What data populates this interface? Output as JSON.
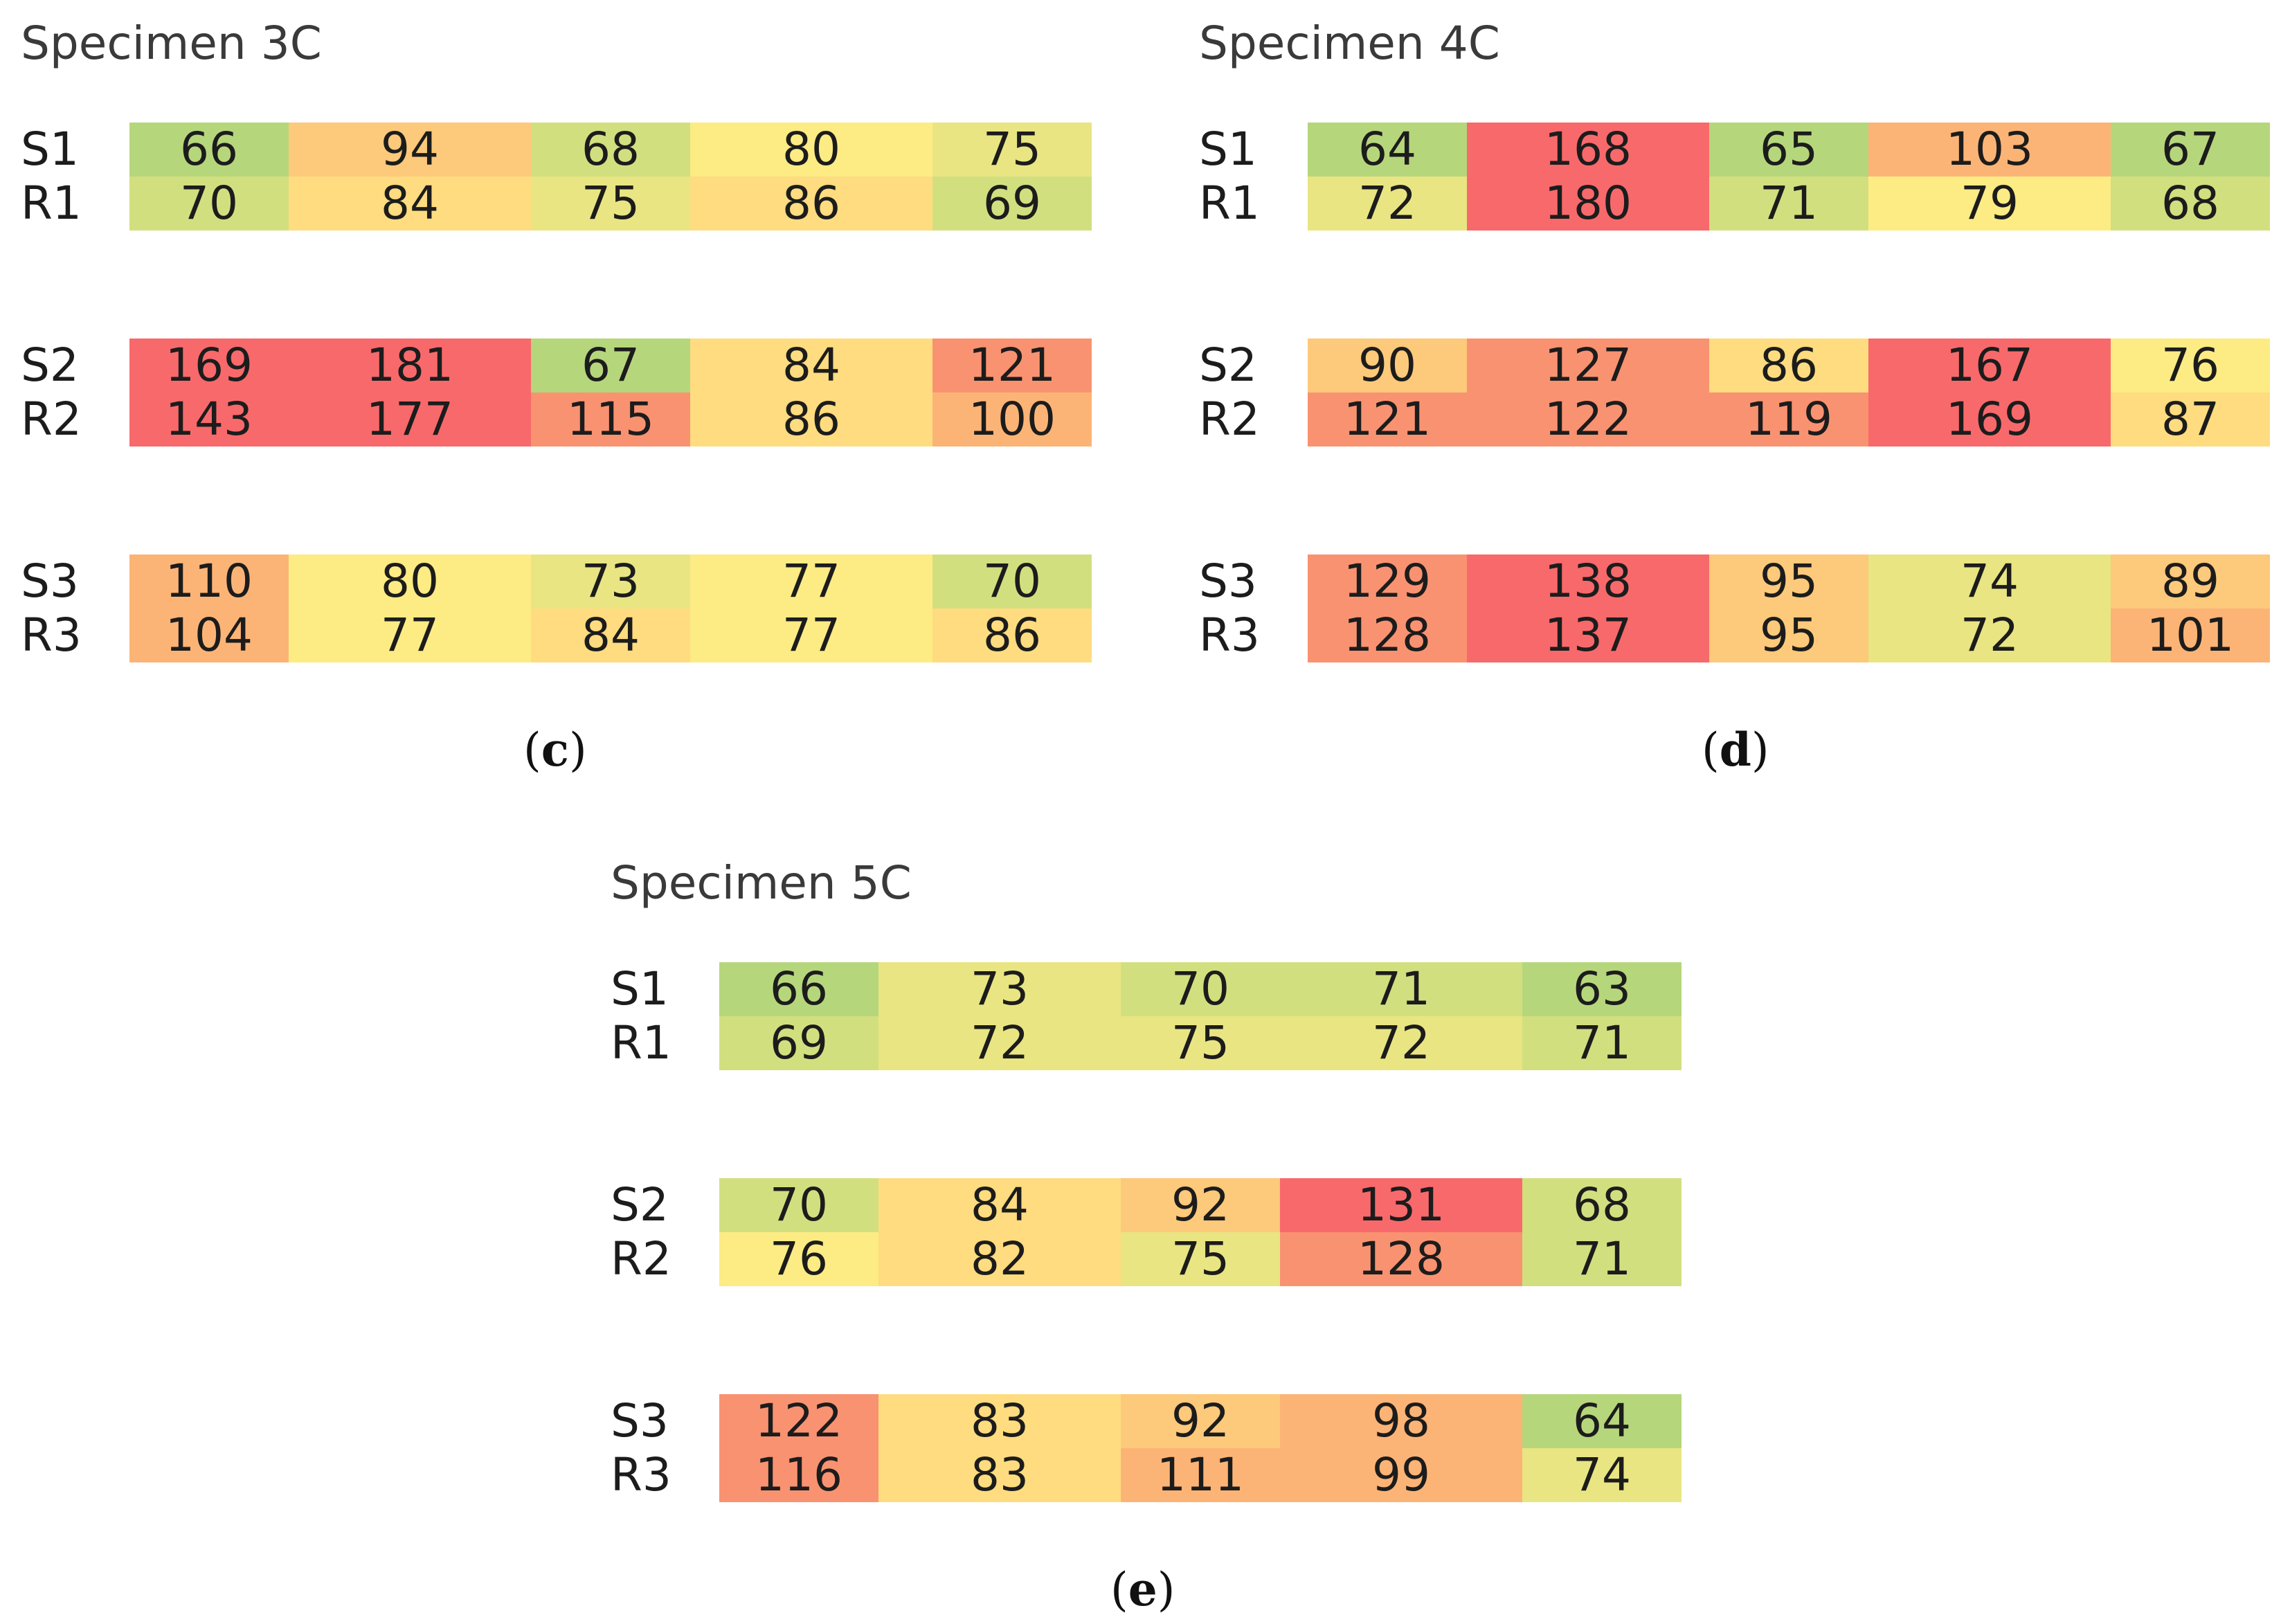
{
  "chart_data": [
    {
      "type": "heatmap",
      "title": "Specimen 3C",
      "caption_letter": "c",
      "row_labels": [
        "S1",
        "R1",
        "S2",
        "R2",
        "S3",
        "R3"
      ],
      "values": [
        [
          66,
          94,
          68,
          80,
          75
        ],
        [
          70,
          84,
          75,
          86,
          69
        ],
        [
          169,
          181,
          67,
          84,
          121
        ],
        [
          143,
          177,
          115,
          86,
          100
        ],
        [
          110,
          80,
          73,
          77,
          70
        ],
        [
          104,
          77,
          84,
          77,
          86
        ]
      ]
    },
    {
      "type": "heatmap",
      "title": "Specimen 4C",
      "caption_letter": "d",
      "row_labels": [
        "S1",
        "R1",
        "S2",
        "R2",
        "S3",
        "R3"
      ],
      "values": [
        [
          64,
          168,
          65,
          103,
          67
        ],
        [
          72,
          180,
          71,
          79,
          68
        ],
        [
          90,
          127,
          86,
          167,
          76
        ],
        [
          121,
          122,
          119,
          169,
          87
        ],
        [
          129,
          138,
          95,
          74,
          89
        ],
        [
          128,
          137,
          95,
          72,
          101
        ]
      ]
    },
    {
      "type": "heatmap",
      "title": "Specimen 5C",
      "caption_letter": "e",
      "row_labels": [
        "S1",
        "R1",
        "S2",
        "R2",
        "S3",
        "R3"
      ],
      "values": [
        [
          66,
          73,
          70,
          71,
          63
        ],
        [
          69,
          72,
          75,
          72,
          71
        ],
        [
          70,
          84,
          92,
          131,
          68
        ],
        [
          76,
          82,
          75,
          128,
          71
        ],
        [
          122,
          83,
          92,
          98,
          64
        ],
        [
          116,
          83,
          111,
          99,
          74
        ]
      ]
    }
  ],
  "colors": {
    "scale": [
      "#b6d67c",
      "#d2df7f",
      "#e9e582",
      "#fdeb84",
      "#fedc7f",
      "#fdc97a",
      "#fcb476",
      "#f99271",
      "#f8696b"
    ],
    "text": "#1c1c1c",
    "title": "#3a3a3a"
  }
}
